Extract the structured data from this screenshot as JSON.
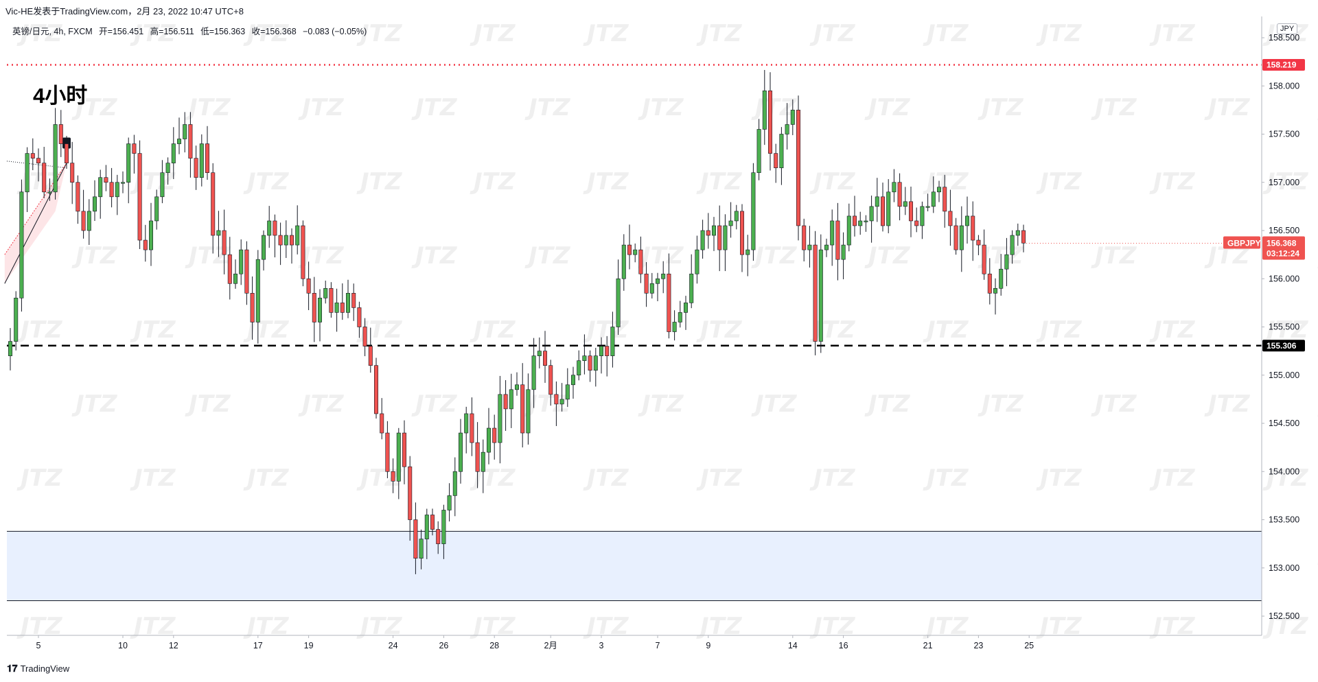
{
  "header": {
    "publisher": "Vic-HE发表于TradingView.com，2月 23, 2022 10:47 UTC+8"
  },
  "legend": {
    "symbol": "英镑/日元, 4h, FXCM",
    "open": "开=156.451",
    "high": "高=156.511",
    "low": "低=156.363",
    "close": "收=156.368",
    "change": "−0.083 (−0.05%)"
  },
  "annotation_label": "4小时",
  "currency_badge": "JPY",
  "brand": {
    "name": "TradingView",
    "icon": "tradingview-logo-icon"
  },
  "colors": {
    "up": "#26a69a",
    "up_body": "#4caf50",
    "down": "#ef5350",
    "resistance": "#f23645",
    "support": "#000000",
    "zone_fill": "#e8f0fe",
    "watermark": "JTZ"
  },
  "chart_data": {
    "type": "candlestick",
    "symbol": "GBPJPY",
    "timeframe": "4h",
    "ylim": [
      152.4,
      158.85
    ],
    "y_ticks": [
      "158.500",
      "158.000",
      "157.500",
      "157.000",
      "156.500",
      "156.000",
      "155.500",
      "155.000",
      "154.500",
      "154.000",
      "153.500",
      "153.000",
      "152.500"
    ],
    "x_ticks": [
      {
        "label": "5",
        "idx": 5
      },
      {
        "label": "10",
        "idx": 20
      },
      {
        "label": "12",
        "idx": 29
      },
      {
        "label": "17",
        "idx": 44
      },
      {
        "label": "19",
        "idx": 53
      },
      {
        "label": "24",
        "idx": 68
      },
      {
        "label": "26",
        "idx": 77
      },
      {
        "label": "28",
        "idx": 86
      },
      {
        "label": "2月",
        "idx": 96
      },
      {
        "label": "3",
        "idx": 105
      },
      {
        "label": "7",
        "idx": 115
      },
      {
        "label": "9",
        "idx": 124
      },
      {
        "label": "14",
        "idx": 139
      },
      {
        "label": "16",
        "idx": 148
      },
      {
        "label": "21",
        "idx": 163
      },
      {
        "label": "23",
        "idx": 172
      },
      {
        "label": "25",
        "idx": 181
      }
    ],
    "closes": [
      155.35,
      155.8,
      156.9,
      157.3,
      157.25,
      157.2,
      156.9,
      156.9,
      157.6,
      157.4,
      157.2,
      157.0,
      156.7,
      156.5,
      156.7,
      156.85,
      157.05,
      157.0,
      156.85,
      157.0,
      157.0,
      157.4,
      157.3,
      156.4,
      156.3,
      156.6,
      156.85,
      157.1,
      157.2,
      157.4,
      157.45,
      157.6,
      157.25,
      157.05,
      157.4,
      157.1,
      156.45,
      156.5,
      156.25,
      155.95,
      156.05,
      156.3,
      155.85,
      155.55,
      156.2,
      156.45,
      156.6,
      156.45,
      156.35,
      156.45,
      156.35,
      156.55,
      156.0,
      155.85,
      155.55,
      155.8,
      155.9,
      155.65,
      155.75,
      155.65,
      155.85,
      155.7,
      155.5,
      155.3,
      155.1,
      154.6,
      154.4,
      154.0,
      153.9,
      154.4,
      154.05,
      153.5,
      153.1,
      153.3,
      153.55,
      153.4,
      153.25,
      153.6,
      153.75,
      154.0,
      154.4,
      154.6,
      154.3,
      154.0,
      154.2,
      154.45,
      154.3,
      154.8,
      154.65,
      154.85,
      154.9,
      154.4,
      154.85,
      155.2,
      155.25,
      155.1,
      154.8,
      154.7,
      154.75,
      154.9,
      155.0,
      155.15,
      155.2,
      155.05,
      155.2,
      155.3,
      155.2,
      155.5,
      156.0,
      156.35,
      156.25,
      156.3,
      156.05,
      155.85,
      155.95,
      156.0,
      156.05,
      155.45,
      155.55,
      155.65,
      155.75,
      156.05,
      156.3,
      156.5,
      156.45,
      156.55,
      156.3,
      156.55,
      156.6,
      156.7,
      156.25,
      156.3,
      157.1,
      157.55,
      157.95,
      157.3,
      157.15,
      157.5,
      157.6,
      157.75,
      156.55,
      156.3,
      156.35,
      155.35,
      156.3,
      156.35,
      156.6,
      156.2,
      156.35,
      156.65,
      156.55,
      156.6,
      156.6,
      156.75,
      156.85,
      156.55,
      156.9,
      157.0,
      156.75,
      156.8,
      156.6,
      156.55,
      156.75,
      156.75,
      156.9,
      156.95,
      156.7,
      156.55,
      156.3,
      156.55,
      156.65,
      156.4,
      156.35,
      156.05,
      155.85,
      155.9,
      156.1,
      156.25,
      156.45,
      156.5,
      156.37
    ],
    "overlays": [
      {
        "label": "158.219",
        "type": "resistance-line",
        "value": 158.219,
        "style": "dotted",
        "color": "#f23645"
      },
      {
        "label": "155.306",
        "type": "support-line",
        "value": 155.306,
        "style": "dashed",
        "color": "#000000"
      },
      {
        "label": "demand-zone",
        "type": "zone",
        "from": 152.66,
        "to": 153.38
      }
    ],
    "price_badge": {
      "symbol": "GBPJPY",
      "price": "156.368",
      "countdown": "03:12:24"
    }
  }
}
